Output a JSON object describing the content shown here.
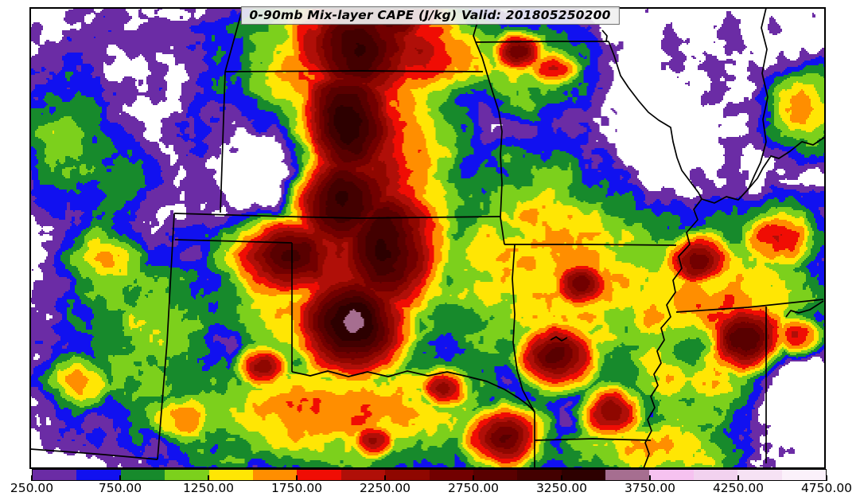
{
  "title": {
    "text": "0-90mb Mix-layer CAPE (J/kg) Valid: 201805250200"
  },
  "chart_data": {
    "type": "heatmap",
    "subtype": "filled-contour-weather-map",
    "variable": "0-90mb Mix-layer CAPE",
    "units": "J/kg",
    "valid_time": "201805250200",
    "title": "0-90mb Mix-layer CAPE (J/kg) Valid: 201805250200",
    "region": "Central United States (state borders shown)",
    "background_color": "#ffffff",
    "frame_color": "#000000",
    "colorbar": {
      "min": 250,
      "max": 4750,
      "step": 250,
      "tick_step": 500,
      "tick_labels": [
        "250.00",
        "750.00",
        "1250.00",
        "1750.00",
        "2250.00",
        "2750.00",
        "3250.00",
        "3750.00",
        "4250.00",
        "4750.00"
      ],
      "segment_colors": [
        "#6B2CA5",
        "#1111F0",
        "#178A2C",
        "#7CD01C",
        "#FFE604",
        "#FF8E00",
        "#F00D04",
        "#B00F08",
        "#8F0700",
        "#720000",
        "#590000",
        "#430000",
        "#2D0000",
        "#A66E90",
        "#F6C2F0",
        "#F2D2EF",
        "#F6E2F4",
        "#FBF1FA"
      ],
      "below_min_color": "#FFFFFF"
    }
  }
}
